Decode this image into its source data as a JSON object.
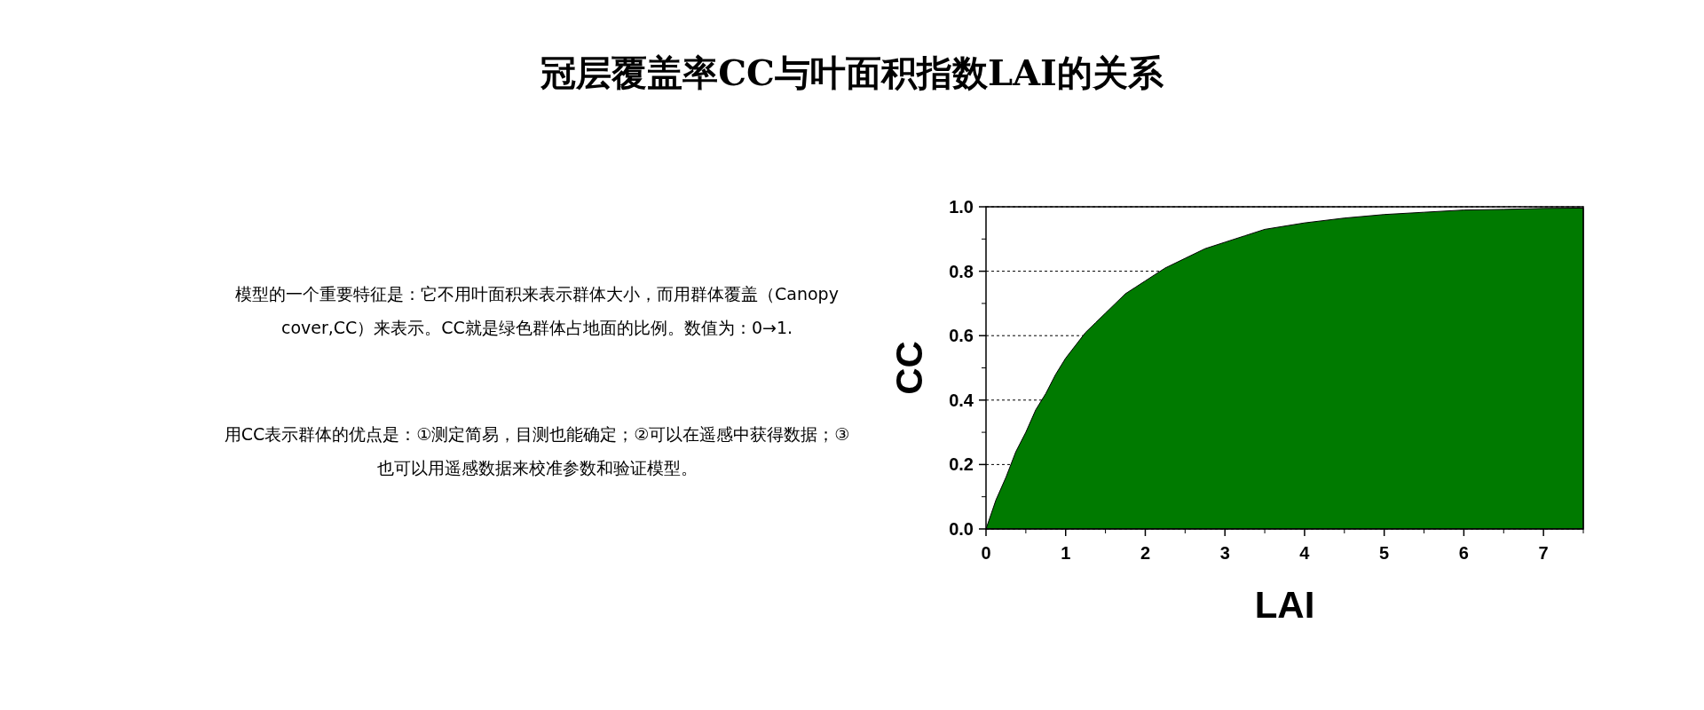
{
  "chart_data": {
    "type": "area",
    "title": "冠层覆盖率CC与叶面积指数LAI的关系",
    "xlabel": "LAI",
    "ylabel": "CC",
    "x": [
      0,
      0.125,
      0.25,
      0.375,
      0.5,
      0.625,
      0.75,
      0.875,
      1,
      1.125,
      1.25,
      1.375,
      1.5,
      1.625,
      1.75,
      1.875,
      2,
      2.25,
      2.5,
      2.75,
      3,
      3.25,
      3.5,
      4,
      4.5,
      5,
      5.5,
      6,
      6.5,
      7,
      7.5
    ],
    "series": [
      {
        "color": "#007a00",
        "values": [
          0,
          0.09,
          0.16,
          0.24,
          0.3,
          0.37,
          0.42,
          0.48,
          0.53,
          0.57,
          0.61,
          0.64,
          0.67,
          0.7,
          0.73,
          0.75,
          0.77,
          0.81,
          0.84,
          0.87,
          0.89,
          0.91,
          0.93,
          0.95,
          0.965,
          0.976,
          0.983,
          0.99,
          0.992,
          0.995,
          0.996
        ]
      }
    ],
    "xlim": [
      0,
      7.5
    ],
    "ylim": [
      0,
      1
    ],
    "xticks": [
      0,
      1,
      2,
      3,
      4,
      5,
      6,
      7
    ],
    "yticks": [
      {
        "value": 0,
        "label": "0.0"
      },
      {
        "value": 0.2,
        "label": "0.2"
      },
      {
        "value": 0.4,
        "label": "0.4"
      },
      {
        "value": 0.6,
        "label": "0.6"
      },
      {
        "value": 0.8,
        "label": "0.8"
      },
      {
        "value": 1,
        "label": "1.0"
      }
    ],
    "grid": "y",
    "annotations": [
      "模型的一个重要特征是：它不用叶面积来表示群体大小，而用群体覆盖（Canopy cover,CC）来表示。CC就是绿色群体占地面的比例。数值为：0→1.",
      "用CC表示群体的优点是：①测定简易，目测也能确定；②可以在遥感中获得数据；③也可以用遥感数据来校准参数和验证模型。"
    ]
  }
}
